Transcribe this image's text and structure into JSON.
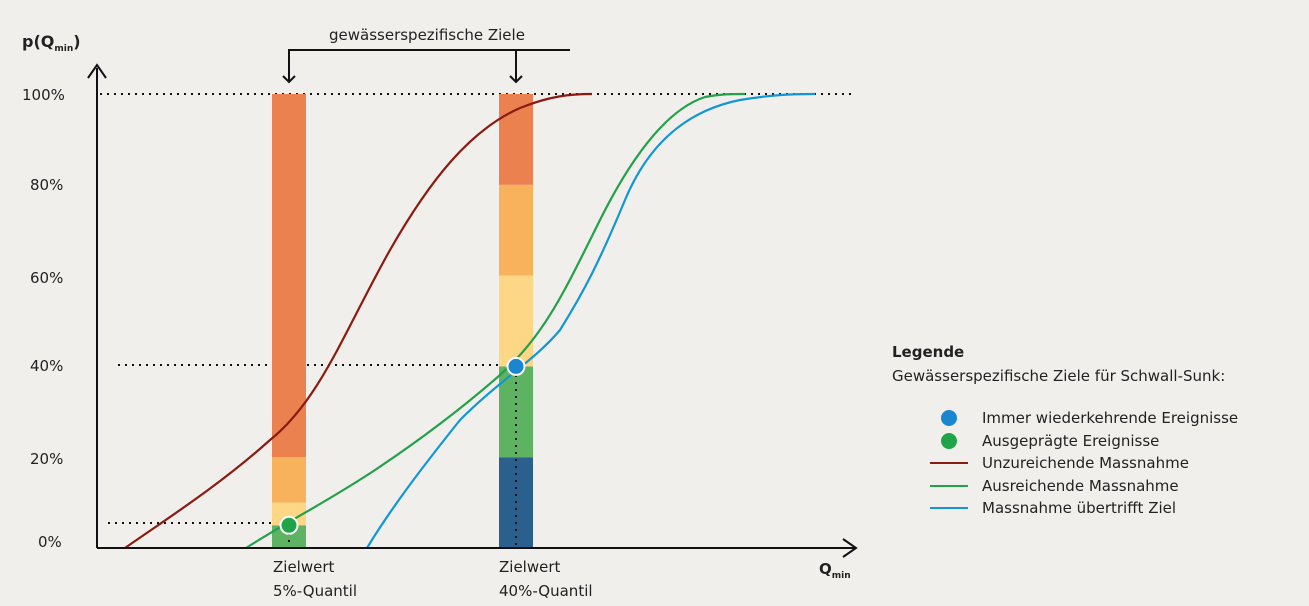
{
  "annotation": "gewässerspezifische Ziele",
  "y_axis_label": {
    "main": "p(Q",
    "sub": "min",
    "close": ")"
  },
  "x_axis_label": {
    "main": "Q",
    "sub": "min"
  },
  "y_ticks": [
    "0%",
    "20%",
    "40%",
    "60%",
    "80%",
    "100%"
  ],
  "targets": [
    {
      "line1": "Zielwert",
      "line2": "5%-Quantil"
    },
    {
      "line1": "Zielwert",
      "line2": "40%-Quantil"
    }
  ],
  "colors": {
    "dark_red": "#8b1a10",
    "green": "#22a14a",
    "blue": "#1296d6",
    "dot_blue": "#1a86cf",
    "dot_green": "#1fa547",
    "bar_orange": "#ec8150",
    "bar_light_orange": "#f8b25c",
    "bar_pale_yellow": "#fdd686",
    "bar_green": "#5db362",
    "bar_dark_blue": "#2a5f8e"
  },
  "legend": {
    "title": "Legende",
    "subtitle": "Gewässerspezifische Ziele für Schwall-Sunk:",
    "items": [
      {
        "kind": "dot",
        "color": "#1a86cf",
        "label": "Immer wiederkehrende Ereignisse"
      },
      {
        "kind": "dot",
        "color": "#1fa547",
        "label": "Ausgeprägte Ereignisse"
      },
      {
        "kind": "line",
        "color": "#8b1a10",
        "label": "Unzureichende Massnahme"
      },
      {
        "kind": "line",
        "color": "#22a14a",
        "label": "Ausreichende Massnahme"
      },
      {
        "kind": "line",
        "color": "#1296d6",
        "label": "Massnahme übertrifft Ziel"
      }
    ]
  },
  "chart_data": {
    "type": "line",
    "ylabel": "p(Qmin)",
    "xlabel": "Qmin",
    "ylim": [
      0,
      100
    ],
    "y_ticks": [
      0,
      20,
      40,
      60,
      80,
      100
    ],
    "bars": [
      {
        "name": "Zielwert 5%-Quantil",
        "segments": [
          {
            "from": 0,
            "to": 5,
            "color": "#5db362"
          },
          {
            "from": 5,
            "to": 10,
            "color": "#fdd686"
          },
          {
            "from": 10,
            "to": 20,
            "color": "#f8b25c"
          },
          {
            "from": 20,
            "to": 100,
            "color": "#ec8150"
          }
        ]
      },
      {
        "name": "Zielwert 40%-Quantil",
        "segments": [
          {
            "from": 0,
            "to": 20,
            "color": "#2a5f8e"
          },
          {
            "from": 20,
            "to": 40,
            "color": "#5db362"
          },
          {
            "from": 40,
            "to": 60,
            "color": "#fdd686"
          },
          {
            "from": 60,
            "to": 80,
            "color": "#f8b25c"
          },
          {
            "from": 80,
            "to": 100,
            "color": "#ec8150"
          }
        ]
      }
    ],
    "points": [
      {
        "bar": 0,
        "y": 5,
        "color": "#1fa547"
      },
      {
        "bar": 1,
        "y": 40,
        "color": "#1a86cf"
      }
    ],
    "series": [
      {
        "name": "Unzureichende Massnahme",
        "color": "#8b1a10"
      },
      {
        "name": "Ausreichende Massnahme",
        "color": "#22a14a"
      },
      {
        "name": "Massnahme übertrifft Ziel",
        "color": "#1296d6"
      }
    ]
  }
}
